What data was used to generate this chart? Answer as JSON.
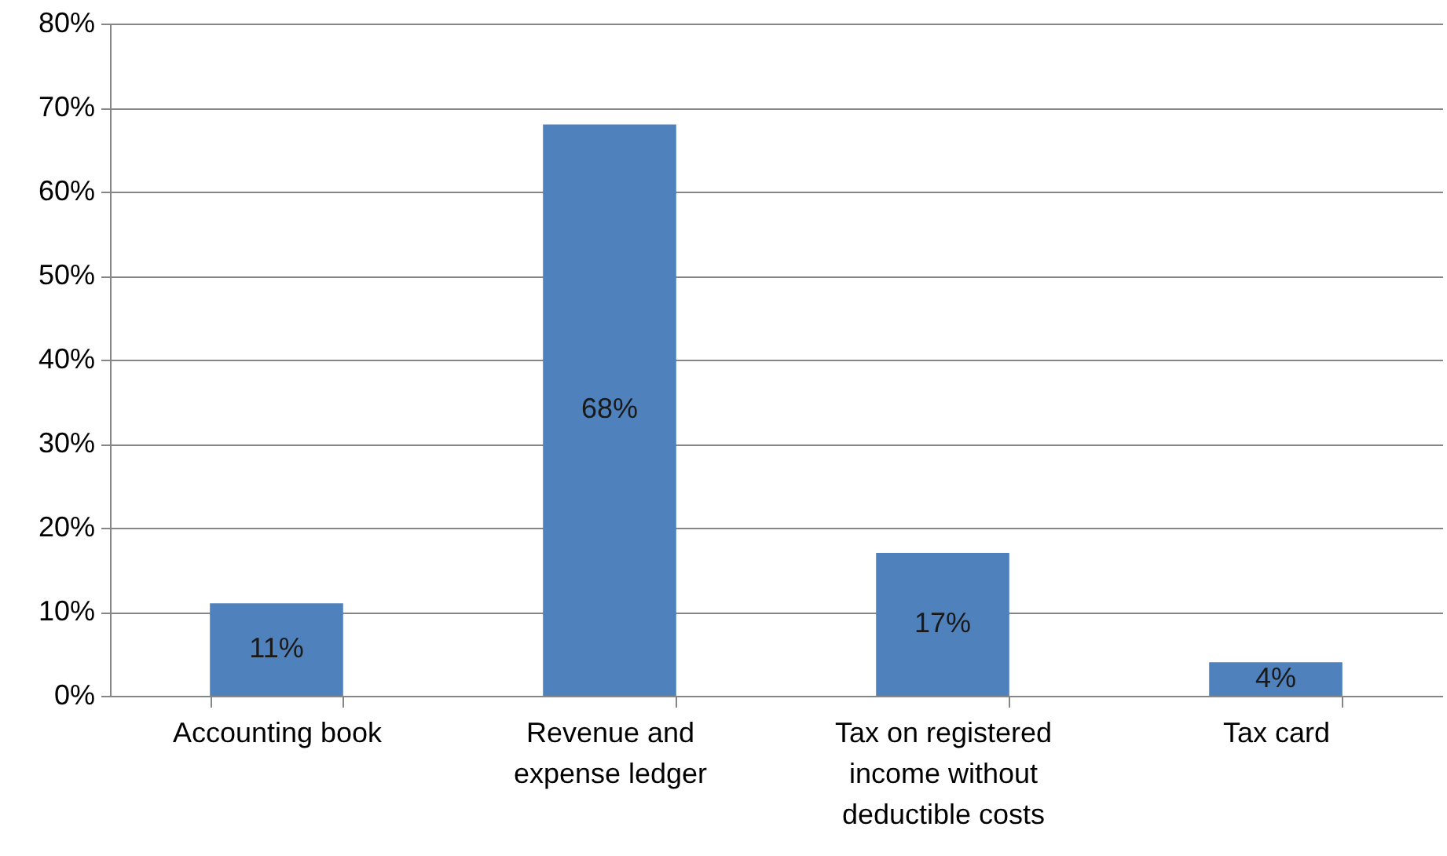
{
  "chart_data": {
    "type": "bar",
    "categories": [
      "Accounting book",
      "Revenue and expense ledger",
      "Tax on registered income without deductible costs",
      "Tax card"
    ],
    "values": [
      11,
      68,
      17,
      4
    ],
    "color": "#4f81bd",
    "value_labels": [
      "11%",
      "68%",
      "17%",
      "4%"
    ],
    "ylim": [
      0,
      80
    ],
    "yticks": [
      {
        "value": 0,
        "label": "0%"
      },
      {
        "value": 10,
        "label": "10%"
      },
      {
        "value": 20,
        "label": "20%"
      },
      {
        "value": 30,
        "label": "30%"
      },
      {
        "value": 40,
        "label": "40%"
      },
      {
        "value": 50,
        "label": "50%"
      },
      {
        "value": 60,
        "label": "60%"
      },
      {
        "value": 70,
        "label": "70%"
      },
      {
        "value": 80,
        "label": "80%"
      }
    ],
    "grid": true
  }
}
